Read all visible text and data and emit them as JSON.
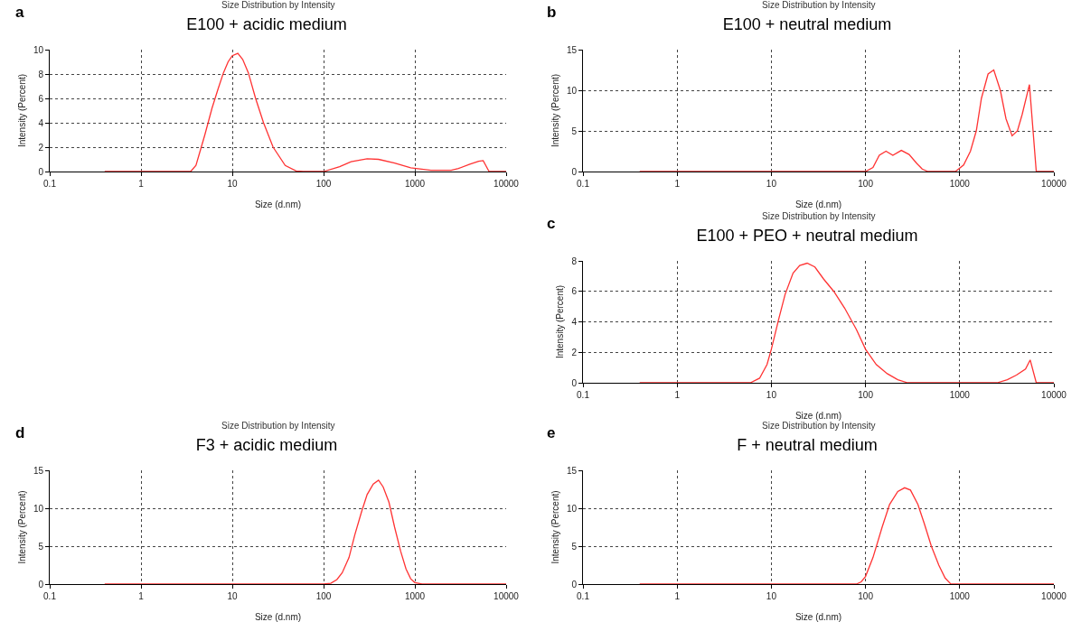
{
  "chart_data": [
    {
      "type": "line",
      "title": "E100 + acidic medium",
      "subtitle": "Size Distribution by Intensity",
      "annotations": [
        "a"
      ],
      "xlabel": "Size (d.nm)",
      "ylabel": "Intensity (Percent)",
      "log": "x",
      "grid": true,
      "marker": "none",
      "line_style": "solid",
      "xlim": [
        0.1,
        10000
      ],
      "xticks": [
        0.1,
        1,
        10,
        100,
        1000,
        10000
      ],
      "ylim": [
        0,
        10
      ],
      "yticks": [
        0,
        2,
        4,
        6,
        8,
        10
      ],
      "series": [
        {
          "color": "#ff3333",
          "x": [
            0.4,
            3.5,
            4,
            5,
            6,
            7,
            8,
            9,
            10,
            11.5,
            13,
            15,
            18,
            22,
            28,
            38,
            50,
            60,
            100,
            150,
            200,
            300,
            400,
            600,
            900,
            1500,
            2500,
            3000,
            4000,
            5000,
            5600,
            6500,
            10000
          ],
          "values": [
            0,
            0,
            0.5,
            3,
            5.2,
            6.8,
            8.1,
            9,
            9.5,
            9.7,
            9.2,
            8.1,
            6,
            4,
            2,
            0.5,
            0.05,
            0,
            0,
            0.4,
            0.8,
            1.05,
            1,
            0.7,
            0.3,
            0.1,
            0.1,
            0.25,
            0.6,
            0.85,
            0.9,
            0,
            0
          ]
        }
      ]
    },
    {
      "type": "line",
      "title": "E100 + neutral medium",
      "subtitle": "Size Distribution by Intensity",
      "annotations": [
        "b"
      ],
      "xlabel": "Size (d.nm)",
      "ylabel": "Intensity (Percent)",
      "log": "x",
      "grid": true,
      "marker": "none",
      "line_style": "solid",
      "xlim": [
        0.1,
        10000
      ],
      "xticks": [
        0.1,
        1,
        10,
        100,
        1000,
        10000
      ],
      "ylim": [
        0,
        15
      ],
      "yticks": [
        0,
        5,
        10,
        15
      ],
      "series": [
        {
          "color": "#ff3333",
          "x": [
            0.4,
            100,
            120,
            140,
            165,
            195,
            240,
            290,
            350,
            400,
            460,
            900,
            1100,
            1300,
            1500,
            1700,
            2000,
            2300,
            2700,
            3100,
            3600,
            4100,
            4600,
            5500,
            6500,
            10000
          ],
          "values": [
            0,
            0,
            0.5,
            2,
            2.5,
            2,
            2.6,
            2.1,
            1,
            0.3,
            0,
            0,
            0.8,
            2.5,
            5,
            9,
            12,
            12.5,
            10,
            6.5,
            4.4,
            5,
            7,
            10.7,
            0,
            0
          ]
        }
      ]
    },
    {
      "type": "line",
      "title": "E100 + PEO + neutral medium",
      "subtitle": "Size Distribution by Intensity",
      "annotations": [
        "c"
      ],
      "xlabel": "Size (d.nm)",
      "ylabel": "Intensity (Percent)",
      "log": "x",
      "grid": true,
      "marker": "none",
      "line_style": "solid",
      "xlim": [
        0.1,
        10000
      ],
      "xticks": [
        0.1,
        1,
        10,
        100,
        1000,
        10000
      ],
      "ylim": [
        0,
        8
      ],
      "yticks": [
        0,
        2,
        4,
        6,
        8
      ],
      "series": [
        {
          "color": "#ff3333",
          "x": [
            0.4,
            6,
            7.5,
            9,
            10,
            12,
            14,
            17,
            20,
            24,
            29,
            36,
            46,
            60,
            80,
            100,
            130,
            170,
            220,
            280,
            2500,
            3200,
            4000,
            5000,
            5600,
            6500,
            10000
          ],
          "values": [
            0,
            0,
            0.3,
            1.2,
            2.2,
            4.2,
            5.8,
            7.2,
            7.7,
            7.85,
            7.6,
            6.8,
            6,
            4.9,
            3.5,
            2.2,
            1.2,
            0.6,
            0.2,
            0,
            0,
            0.2,
            0.5,
            0.9,
            1.5,
            0,
            0
          ]
        }
      ]
    },
    {
      "type": "line",
      "title": "F3 + acidic medium",
      "subtitle": "Size Distribution by Intensity",
      "annotations": [
        "d"
      ],
      "xlabel": "Size (d.nm)",
      "ylabel": "Intensity (Percent)",
      "log": "x",
      "grid": true,
      "marker": "none",
      "line_style": "solid",
      "xlim": [
        0.1,
        10000
      ],
      "xticks": [
        0.1,
        1,
        10,
        100,
        1000,
        10000
      ],
      "ylim": [
        0,
        15
      ],
      "yticks": [
        0,
        5,
        10,
        15
      ],
      "series": [
        {
          "color": "#ff3333",
          "x": [
            0.4,
            100,
            120,
            140,
            160,
            190,
            220,
            260,
            300,
            350,
            400,
            450,
            520,
            600,
            700,
            800,
            900,
            1000,
            1200,
            10000
          ],
          "values": [
            0,
            0,
            0.1,
            0.6,
            1.5,
            3.5,
            6.5,
            9.5,
            11.8,
            13.2,
            13.7,
            12.8,
            10.8,
            7.5,
            4.3,
            2,
            0.7,
            0.2,
            0,
            0
          ]
        }
      ]
    },
    {
      "type": "line",
      "title": "F + neutral medium",
      "subtitle": "Size Distribution by Intensity",
      "annotations": [
        "e"
      ],
      "xlabel": "Size (d.nm)",
      "ylabel": "Intensity (Percent)",
      "log": "x",
      "grid": true,
      "marker": "none",
      "line_style": "solid",
      "xlim": [
        0.1,
        10000
      ],
      "xticks": [
        0.1,
        1,
        10,
        100,
        1000,
        10000
      ],
      "ylim": [
        0,
        15
      ],
      "yticks": [
        0,
        5,
        10,
        15
      ],
      "series": [
        {
          "color": "#ff3333",
          "x": [
            0.4,
            80,
            90,
            100,
            120,
            150,
            180,
            220,
            260,
            300,
            360,
            420,
            500,
            600,
            700,
            800,
            900,
            10000
          ],
          "values": [
            0,
            0,
            0.3,
            1,
            3.5,
            7.5,
            10.5,
            12.2,
            12.7,
            12.4,
            10.5,
            8,
            5,
            2.5,
            0.8,
            0.05,
            0,
            0
          ]
        }
      ]
    }
  ]
}
